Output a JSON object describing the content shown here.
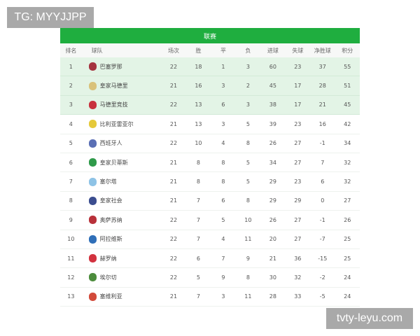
{
  "watermarks": {
    "top_left": "TG: MYYJJPP",
    "bottom_right": "tvty-leyu.com"
  },
  "table": {
    "title": "联赛",
    "columns": [
      "排名",
      "球队",
      "场次",
      "胜",
      "平",
      "负",
      "进球",
      "失球",
      "净胜球",
      "积分"
    ],
    "highlight_color": "#e3f4e6",
    "header_color": "#1fae3f",
    "rows": [
      {
        "rank": "1",
        "team": "巴塞罗那",
        "icon": "barcelona-crest",
        "color": "#a5333f",
        "played": "22",
        "w": "18",
        "d": "1",
        "l": "3",
        "gf": "60",
        "ga": "23",
        "gd": "37",
        "pts": "55"
      },
      {
        "rank": "2",
        "team": "皇家马德里",
        "icon": "real-madrid-crest",
        "color": "#d9c27a",
        "played": "21",
        "w": "16",
        "d": "3",
        "l": "2",
        "gf": "45",
        "ga": "17",
        "gd": "28",
        "pts": "51"
      },
      {
        "rank": "3",
        "team": "马德里竞技",
        "icon": "atletico-crest",
        "color": "#c8313d",
        "played": "22",
        "w": "13",
        "d": "6",
        "l": "3",
        "gf": "38",
        "ga": "17",
        "gd": "21",
        "pts": "45"
      },
      {
        "rank": "4",
        "team": "比利亚雷亚尔",
        "icon": "villarreal-crest",
        "color": "#e5c93a",
        "played": "21",
        "w": "13",
        "d": "3",
        "l": "5",
        "gf": "39",
        "ga": "23",
        "gd": "16",
        "pts": "42"
      },
      {
        "rank": "5",
        "team": "西班牙人",
        "icon": "espanyol-crest",
        "color": "#5a6fb5",
        "played": "22",
        "w": "10",
        "d": "4",
        "l": "8",
        "gf": "26",
        "ga": "27",
        "gd": "-1",
        "pts": "34"
      },
      {
        "rank": "6",
        "team": "皇家贝蒂斯",
        "icon": "betis-crest",
        "color": "#2f9a4a",
        "played": "21",
        "w": "8",
        "d": "8",
        "l": "5",
        "gf": "34",
        "ga": "27",
        "gd": "7",
        "pts": "32"
      },
      {
        "rank": "7",
        "team": "塞尔塔",
        "icon": "celta-crest",
        "color": "#8ec3e6",
        "played": "21",
        "w": "8",
        "d": "8",
        "l": "5",
        "gf": "29",
        "ga": "23",
        "gd": "6",
        "pts": "32"
      },
      {
        "rank": "8",
        "team": "皇家社会",
        "icon": "real-sociedad-crest",
        "color": "#3b4d8f",
        "played": "21",
        "w": "7",
        "d": "6",
        "l": "8",
        "gf": "29",
        "ga": "29",
        "gd": "0",
        "pts": "27"
      },
      {
        "rank": "9",
        "team": "奥萨苏纳",
        "icon": "osasuna-crest",
        "color": "#b8313a",
        "played": "22",
        "w": "7",
        "d": "5",
        "l": "10",
        "gf": "26",
        "ga": "27",
        "gd": "-1",
        "pts": "26"
      },
      {
        "rank": "10",
        "team": "阿拉维斯",
        "icon": "alaves-crest",
        "color": "#2f6fb8",
        "played": "22",
        "w": "7",
        "d": "4",
        "l": "11",
        "gf": "20",
        "ga": "27",
        "gd": "-7",
        "pts": "25"
      },
      {
        "rank": "11",
        "team": "赫罗纳",
        "icon": "girona-crest",
        "color": "#d2323f",
        "played": "22",
        "w": "6",
        "d": "7",
        "l": "9",
        "gf": "21",
        "ga": "36",
        "gd": "-15",
        "pts": "25"
      },
      {
        "rank": "12",
        "team": "埃尔切",
        "icon": "elche-crest",
        "color": "#4c8c3c",
        "played": "22",
        "w": "5",
        "d": "9",
        "l": "8",
        "gf": "30",
        "ga": "32",
        "gd": "-2",
        "pts": "24"
      },
      {
        "rank": "13",
        "team": "塞维利亚",
        "icon": "sevilla-crest",
        "color": "#d24a3a",
        "played": "21",
        "w": "7",
        "d": "3",
        "l": "11",
        "gf": "28",
        "ga": "33",
        "gd": "-5",
        "pts": "24"
      }
    ]
  }
}
